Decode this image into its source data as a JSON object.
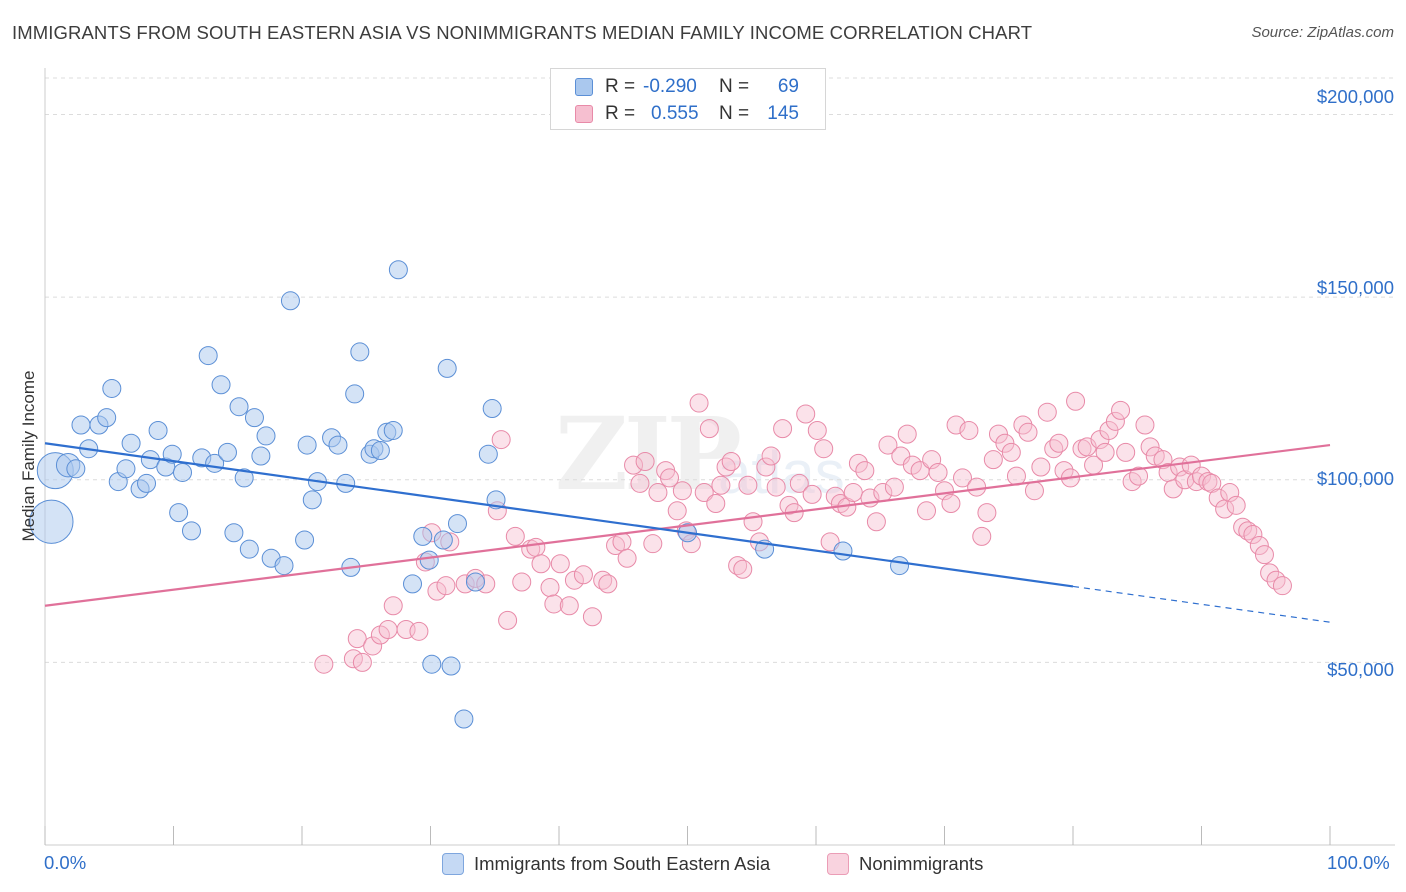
{
  "header": {
    "title": "IMMIGRANTS FROM SOUTH EASTERN ASIA VS NONIMMIGRANTS MEDIAN FAMILY INCOME CORRELATION CHART",
    "source": "Source: ZipAtlas.com"
  },
  "watermark": {
    "zip": "ZIP",
    "atlas": "atlas"
  },
  "legend": {
    "rows": [
      {
        "r_label": "R =",
        "r_value": "-0.290",
        "n_label": "N =",
        "n_value": "69"
      },
      {
        "r_label": "R =",
        "r_value": "0.555",
        "n_label": "N =",
        "n_value": "145"
      }
    ]
  },
  "axes": {
    "ylabel": "Median Family Income",
    "yticks": [
      "$200,000",
      "$150,000",
      "$100,000",
      "$50,000"
    ],
    "xticks": [
      "0.0%",
      "100.0%"
    ]
  },
  "colors": {
    "blue_fill": "#aac8ee",
    "blue_stroke": "#5b8fd6",
    "blue_line": "#2f6fcf",
    "pink_fill": "#f6bfd0",
    "pink_stroke": "#e88aa8",
    "pink_line": "#e0719a",
    "accent_text": "#2f6fc9"
  },
  "chart_data": {
    "type": "scatter",
    "title": "IMMIGRANTS FROM SOUTH EASTERN ASIA VS NONIMMIGRANTS MEDIAN FAMILY INCOME CORRELATION CHART",
    "xlabel": "",
    "ylabel": "Median Family Income",
    "xlim": [
      0,
      100
    ],
    "ylim": [
      0,
      210000
    ],
    "x_unit": "%",
    "grid": true,
    "legend_position": "top-center",
    "series": [
      {
        "name": "Immigrants from South Eastern Asia",
        "color": "#aac8ee",
        "regression": {
          "r": -0.29,
          "n": 69,
          "x0": 0,
          "y0": 110000,
          "x1": 100,
          "y1": 61000,
          "solid_until": 80
        },
        "points": [
          [
            0.5,
            88500,
            2.4
          ],
          [
            0.8,
            102500,
            2
          ],
          [
            1.8,
            104000,
            1.3
          ],
          [
            2.4,
            103000,
            1
          ],
          [
            2.8,
            115000,
            1
          ],
          [
            3.4,
            108500,
            1
          ],
          [
            4.2,
            115000,
            1
          ],
          [
            4.8,
            117000,
            1
          ],
          [
            5.2,
            125000,
            1
          ],
          [
            5.7,
            99500,
            1
          ],
          [
            6.3,
            103000,
            1
          ],
          [
            6.7,
            110000,
            1
          ],
          [
            7.4,
            97500,
            1
          ],
          [
            7.9,
            99000,
            1
          ],
          [
            8.2,
            105500,
            1
          ],
          [
            8.8,
            113500,
            1
          ],
          [
            9.4,
            103500,
            1
          ],
          [
            9.9,
            107000,
            1
          ],
          [
            10.4,
            91000,
            1
          ],
          [
            10.7,
            102000,
            1
          ],
          [
            11.4,
            86000,
            1
          ],
          [
            12.2,
            106000,
            1
          ],
          [
            12.7,
            134000,
            1
          ],
          [
            13.2,
            104500,
            1
          ],
          [
            13.7,
            126000,
            1
          ],
          [
            14.2,
            107500,
            1
          ],
          [
            14.7,
            85500,
            1
          ],
          [
            15.1,
            120000,
            1
          ],
          [
            15.5,
            100500,
            1
          ],
          [
            15.9,
            81000,
            1
          ],
          [
            16.3,
            117000,
            1
          ],
          [
            16.8,
            106500,
            1
          ],
          [
            17.2,
            112000,
            1
          ],
          [
            17.6,
            78500,
            1
          ],
          [
            18.6,
            76500,
            1
          ],
          [
            19.1,
            149000,
            1
          ],
          [
            20.2,
            83500,
            1
          ],
          [
            20.4,
            109500,
            1
          ],
          [
            20.8,
            94500,
            1
          ],
          [
            21.2,
            99500,
            1
          ],
          [
            22.3,
            111500,
            1
          ],
          [
            22.8,
            109500,
            1
          ],
          [
            23.4,
            99000,
            1
          ],
          [
            23.8,
            76000,
            1
          ],
          [
            24.1,
            123500,
            1
          ],
          [
            24.5,
            135000,
            1
          ],
          [
            25.3,
            107000,
            1
          ],
          [
            25.6,
            108500,
            1
          ],
          [
            26.1,
            108000,
            1
          ],
          [
            26.6,
            113000,
            1
          ],
          [
            27.1,
            113500,
            1
          ],
          [
            27.5,
            157500,
            1
          ],
          [
            28.6,
            71500,
            1
          ],
          [
            29.4,
            84500,
            1
          ],
          [
            29.9,
            78000,
            1
          ],
          [
            30.1,
            49500,
            1
          ],
          [
            31.0,
            83500,
            1
          ],
          [
            31.3,
            130500,
            1
          ],
          [
            31.6,
            49000,
            1
          ],
          [
            32.1,
            88000,
            1
          ],
          [
            32.6,
            34500,
            1
          ],
          [
            33.5,
            72000,
            1
          ],
          [
            34.5,
            107000,
            1
          ],
          [
            34.8,
            119500,
            1
          ],
          [
            35.1,
            94500,
            1
          ],
          [
            50.0,
            85500,
            1
          ],
          [
            56.0,
            81000,
            1
          ],
          [
            62.1,
            80500,
            1
          ],
          [
            66.5,
            76500,
            1
          ]
        ]
      },
      {
        "name": "Nonimmigrants",
        "color": "#f6bfd0",
        "regression": {
          "r": 0.555,
          "n": 145,
          "x0": 0,
          "y0": 65500,
          "x1": 100,
          "y1": 109500
        },
        "points": [
          [
            21.7,
            49500
          ],
          [
            24.0,
            51000
          ],
          [
            24.3,
            56500
          ],
          [
            24.7,
            50000
          ],
          [
            25.5,
            54500
          ],
          [
            26.1,
            57500
          ],
          [
            26.7,
            59000
          ],
          [
            27.1,
            65500
          ],
          [
            28.1,
            59000
          ],
          [
            29.1,
            58500
          ],
          [
            29.6,
            77500
          ],
          [
            30.1,
            85500
          ],
          [
            30.5,
            69500
          ],
          [
            31.2,
            71000
          ],
          [
            31.5,
            83000
          ],
          [
            32.7,
            71500
          ],
          [
            33.5,
            73000
          ],
          [
            34.3,
            71500
          ],
          [
            35.2,
            91500
          ],
          [
            35.5,
            111000
          ],
          [
            36.0,
            61500
          ],
          [
            36.6,
            84500
          ],
          [
            37.1,
            72000
          ],
          [
            37.8,
            81000
          ],
          [
            38.2,
            81500
          ],
          [
            38.6,
            77000
          ],
          [
            39.3,
            70500
          ],
          [
            39.6,
            66000
          ],
          [
            40.1,
            77000
          ],
          [
            40.8,
            65500
          ],
          [
            41.2,
            72500
          ],
          [
            41.9,
            74000
          ],
          [
            42.6,
            62500
          ],
          [
            43.4,
            72500
          ],
          [
            43.8,
            71500
          ],
          [
            44.4,
            82000
          ],
          [
            44.9,
            83000
          ],
          [
            45.3,
            78500
          ],
          [
            45.8,
            104000
          ],
          [
            46.3,
            99000
          ],
          [
            46.7,
            105000
          ],
          [
            47.3,
            82500
          ],
          [
            47.7,
            96500
          ],
          [
            48.3,
            102500
          ],
          [
            48.6,
            100500
          ],
          [
            49.2,
            91500
          ],
          [
            49.6,
            97000
          ],
          [
            49.9,
            86000
          ],
          [
            50.3,
            82500
          ],
          [
            50.9,
            121000
          ],
          [
            51.3,
            96500
          ],
          [
            51.7,
            114000
          ],
          [
            52.2,
            93500
          ],
          [
            52.6,
            98500
          ],
          [
            53.0,
            103500
          ],
          [
            53.4,
            105000
          ],
          [
            53.9,
            76500
          ],
          [
            54.3,
            75500
          ],
          [
            54.7,
            98500
          ],
          [
            55.1,
            88500
          ],
          [
            55.6,
            83000
          ],
          [
            56.1,
            103500
          ],
          [
            56.5,
            106500
          ],
          [
            56.9,
            98000
          ],
          [
            57.4,
            114000
          ],
          [
            57.9,
            93000
          ],
          [
            58.3,
            91000
          ],
          [
            58.7,
            99000
          ],
          [
            59.2,
            118000
          ],
          [
            59.7,
            96000
          ],
          [
            60.1,
            113500
          ],
          [
            60.6,
            108500
          ],
          [
            61.1,
            83000
          ],
          [
            61.5,
            95500
          ],
          [
            61.9,
            93500
          ],
          [
            62.4,
            92500
          ],
          [
            62.9,
            96500
          ],
          [
            63.3,
            104500
          ],
          [
            63.8,
            102500
          ],
          [
            64.2,
            95000
          ],
          [
            64.7,
            88500
          ],
          [
            65.2,
            96500
          ],
          [
            65.6,
            109500
          ],
          [
            66.1,
            98000
          ],
          [
            66.6,
            106500
          ],
          [
            67.1,
            112500
          ],
          [
            67.5,
            104000
          ],
          [
            68.1,
            102500
          ],
          [
            68.6,
            91500
          ],
          [
            69.0,
            105500
          ],
          [
            69.5,
            102000
          ],
          [
            70.0,
            97000
          ],
          [
            70.5,
            93500
          ],
          [
            70.9,
            115000
          ],
          [
            71.4,
            100500
          ],
          [
            71.9,
            113500
          ],
          [
            72.5,
            98000
          ],
          [
            72.9,
            84500
          ],
          [
            73.3,
            91000
          ],
          [
            73.8,
            105500
          ],
          [
            74.2,
            112500
          ],
          [
            74.7,
            110000
          ],
          [
            75.2,
            107500
          ],
          [
            75.6,
            101000
          ],
          [
            76.1,
            115000
          ],
          [
            76.5,
            113000
          ],
          [
            77.0,
            97000
          ],
          [
            77.5,
            103500
          ],
          [
            78.0,
            118500
          ],
          [
            78.5,
            108500
          ],
          [
            78.9,
            110000
          ],
          [
            79.3,
            102500
          ],
          [
            79.8,
            100500
          ],
          [
            80.2,
            121500
          ],
          [
            80.7,
            108500
          ],
          [
            81.1,
            109000
          ],
          [
            81.6,
            104000
          ],
          [
            82.1,
            111000
          ],
          [
            82.5,
            107500
          ],
          [
            82.8,
            113500
          ],
          [
            83.3,
            116000
          ],
          [
            83.7,
            119000
          ],
          [
            84.1,
            107500
          ],
          [
            84.6,
            99500
          ],
          [
            85.1,
            101000
          ],
          [
            85.6,
            115000
          ],
          [
            86.0,
            109000
          ],
          [
            86.4,
            106500
          ],
          [
            87.0,
            105500
          ],
          [
            87.4,
            102000
          ],
          [
            87.8,
            97500
          ],
          [
            88.3,
            103500
          ],
          [
            88.7,
            100000
          ],
          [
            89.2,
            104000
          ],
          [
            89.6,
            99500
          ],
          [
            90.0,
            101000
          ],
          [
            90.5,
            99500
          ],
          [
            90.8,
            99000
          ],
          [
            91.3,
            95000
          ],
          [
            91.8,
            92000
          ],
          [
            92.2,
            96500
          ],
          [
            92.7,
            93000
          ],
          [
            93.2,
            87000
          ],
          [
            93.6,
            86000
          ],
          [
            94.0,
            85000
          ],
          [
            94.5,
            82000
          ],
          [
            94.9,
            79500
          ],
          [
            95.3,
            74500
          ],
          [
            95.8,
            72500
          ],
          [
            96.3,
            71000
          ]
        ]
      }
    ]
  },
  "bottom_legend": [
    {
      "label": "Immigrants from South Eastern Asia"
    },
    {
      "label": "Nonimmigrants"
    }
  ]
}
